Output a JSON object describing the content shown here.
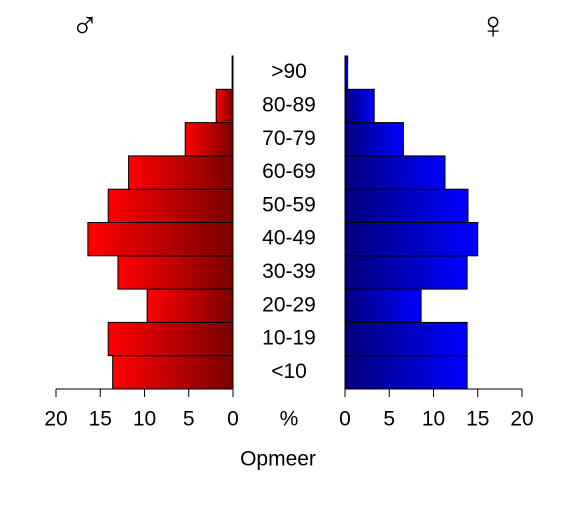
{
  "chart_data": {
    "type": "pyramid",
    "center_label": "%",
    "xlabel": "Opmeer",
    "categories": [
      "<10",
      "10-19",
      "20-29",
      "30-39",
      "40-49",
      "50-59",
      "60-69",
      "70-79",
      "80-89",
      ">90"
    ],
    "series": [
      {
        "name": "♂",
        "color": "#ff0000",
        "values": [
          13.6,
          14.1,
          9.7,
          13.0,
          16.4,
          14.1,
          11.8,
          5.4,
          1.9,
          0.1
        ]
      },
      {
        "name": "♀",
        "color": "#0000ff",
        "values": [
          13.8,
          13.8,
          8.6,
          13.8,
          15.0,
          13.9,
          11.3,
          6.6,
          3.3,
          0.3
        ]
      }
    ],
    "xlim": [
      0,
      20
    ],
    "xticks": [
      0,
      5,
      10,
      15,
      20
    ]
  }
}
